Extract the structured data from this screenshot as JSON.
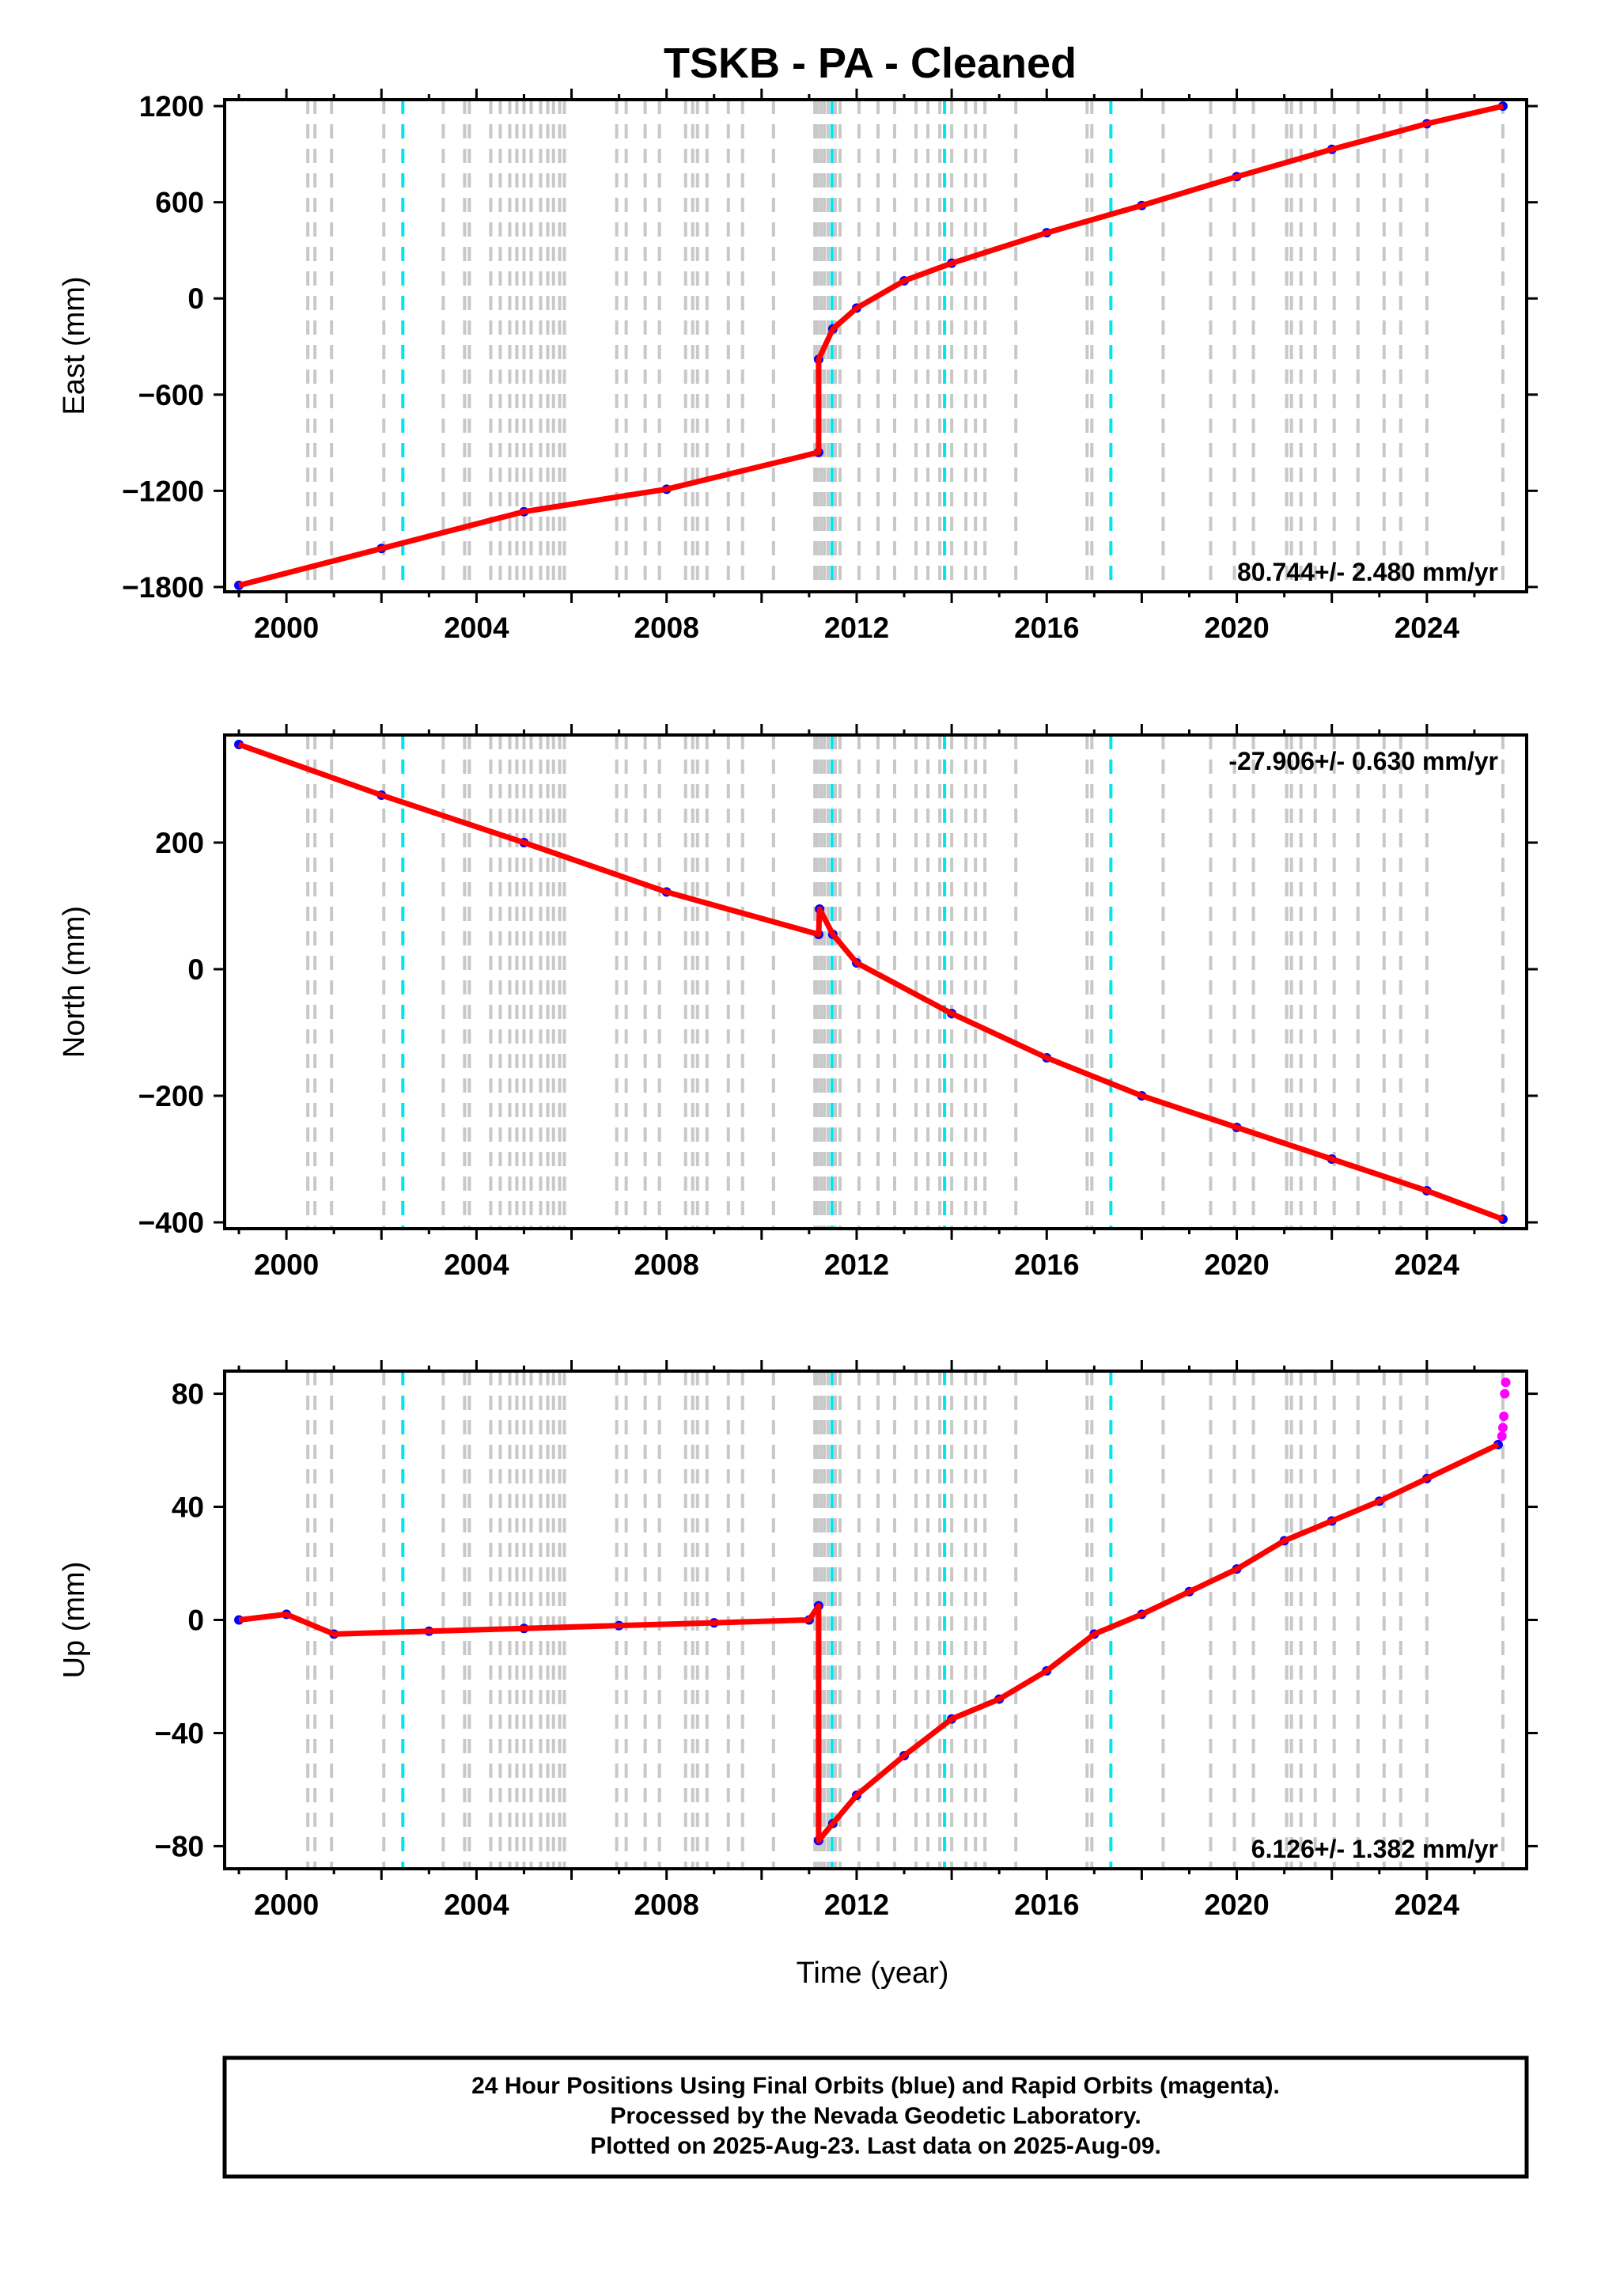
{
  "chart_data": {
    "title": "TSKB  - PA - Cleaned",
    "xlabel": "Time (year)",
    "xlim": [
      1998.7,
      2026.1
    ],
    "x_ticks": [
      "2000",
      "2004",
      "2008",
      "2012",
      "2016",
      "2020",
      "2024"
    ],
    "colors": {
      "final_orbits": "#0000ff",
      "rapid_orbits": "#ff00ff",
      "model_fit": "#ff0000",
      "equipment_change": "#c8c8c8",
      "earthquake": "#00e5ee"
    },
    "gray_event_lines": [
      2000.45,
      2000.6,
      2000.95,
      2002.05,
      2003.3,
      2003.75,
      2003.85,
      2004.3,
      2004.5,
      2004.7,
      2004.85,
      2005.0,
      2005.15,
      2005.35,
      2005.5,
      2005.62,
      2005.75,
      2005.85,
      2006.95,
      2007.15,
      2007.55,
      2007.85,
      2008.4,
      2008.55,
      2008.65,
      2008.85,
      2009.3,
      2009.6,
      2010.25,
      2011.12,
      2011.18,
      2011.25,
      2011.32,
      2011.4,
      2011.55,
      2011.65,
      2012.05,
      2012.45,
      2012.8,
      2013.25,
      2013.5,
      2013.75,
      2014.0,
      2014.3,
      2014.5,
      2014.7,
      2015.35,
      2016.85,
      2016.95,
      2018.45,
      2019.45,
      2019.95,
      2020.35,
      2021.05,
      2021.15,
      2021.35,
      2021.65,
      2022.05,
      2022.55,
      2023.1,
      2023.45,
      2024.0,
      2025.6
    ],
    "cyan_event_lines": [
      2002.45,
      2011.48,
      2013.85,
      2017.35
    ],
    "panels": [
      {
        "type": "scatter",
        "ylabel": "East (mm)",
        "ylim": [
          -1830,
          1240
        ],
        "y_ticks": [
          -1800,
          -1200,
          -600,
          0,
          600,
          1200
        ],
        "rate_label": "80.744+/- 2.480 mm/yr",
        "rate_position": "bottom-right",
        "series": [
          {
            "name": "Final Orbits",
            "role": "final",
            "x": [
              1999.0,
              2002.0,
              2005.0,
              2008.0,
              2011.2,
              2011.2,
              2011.5,
              2012.0,
              2013.0,
              2014.0,
              2016.0,
              2018.0,
              2020.0,
              2022.0,
              2024.0,
              2025.6
            ],
            "y": [
              -1790,
              -1560,
              -1330,
              -1190,
              -960,
              -380,
              -190,
              -60,
              110,
              220,
              410,
              580,
              760,
              930,
              1090,
              1200
            ]
          },
          {
            "name": "Model Fit",
            "role": "fit",
            "x": [
              1999.0,
              2002.0,
              2005.0,
              2008.0,
              2011.2,
              2011.2,
              2011.5,
              2012.0,
              2013.0,
              2014.0,
              2016.0,
              2018.0,
              2020.0,
              2022.0,
              2024.0,
              2025.6
            ],
            "y": [
              -1790,
              -1560,
              -1330,
              -1190,
              -960,
              -380,
              -190,
              -60,
              110,
              220,
              410,
              580,
              760,
              930,
              1090,
              1200
            ]
          }
        ]
      },
      {
        "type": "scatter",
        "ylabel": "North (mm)",
        "ylim": [
          -410,
          370
        ],
        "y_ticks": [
          -400,
          -200,
          0,
          200
        ],
        "rate_label": "-27.906+/- 0.630 mm/yr",
        "rate_position": "top-right",
        "series": [
          {
            "name": "Final Orbits",
            "role": "final",
            "x": [
              1999.0,
              2002.0,
              2005.0,
              2008.0,
              2011.2,
              2011.22,
              2011.5,
              2012.0,
              2014.0,
              2016.0,
              2018.0,
              2020.0,
              2022.0,
              2024.0,
              2025.6
            ],
            "y": [
              355,
              275,
              200,
              122,
              55,
              95,
              55,
              10,
              -70,
              -140,
              -200,
              -250,
              -300,
              -350,
              -395
            ]
          },
          {
            "name": "Model Fit",
            "role": "fit",
            "x": [
              1999.0,
              2002.0,
              2005.0,
              2008.0,
              2011.2,
              2011.22,
              2011.5,
              2012.0,
              2014.0,
              2016.0,
              2018.0,
              2020.0,
              2022.0,
              2024.0,
              2025.6
            ],
            "y": [
              355,
              275,
              200,
              122,
              55,
              95,
              55,
              10,
              -70,
              -140,
              -200,
              -250,
              -300,
              -350,
              -395
            ]
          }
        ]
      },
      {
        "type": "scatter",
        "ylabel": "Up (mm)",
        "ylim": [
          -88,
          88
        ],
        "y_ticks": [
          -80,
          -40,
          0,
          40,
          80
        ],
        "rate_label": "6.126+/- 1.382 mm/yr",
        "rate_position": "bottom-right",
        "series": [
          {
            "name": "Final Orbits",
            "role": "final",
            "x": [
              1999.0,
              2000.0,
              2001.0,
              2003.0,
              2005.0,
              2007.0,
              2009.0,
              2011.0,
              2011.2,
              2011.2,
              2011.5,
              2012.0,
              2013.0,
              2014.0,
              2015.0,
              2016.0,
              2017.0,
              2018.0,
              2019.0,
              2020.0,
              2021.0,
              2022.0,
              2023.0,
              2024.0,
              2025.5
            ],
            "y": [
              0,
              2,
              -5,
              -4,
              -3,
              -2,
              -1,
              0,
              5,
              -78,
              -72,
              -62,
              -48,
              -35,
              -28,
              -18,
              -5,
              2,
              10,
              18,
              28,
              35,
              42,
              50,
              62
            ]
          },
          {
            "name": "Rapid Orbits",
            "role": "rapid",
            "x": [
              2025.58,
              2025.6,
              2025.62,
              2025.64,
              2025.66
            ],
            "y": [
              65,
              68,
              72,
              80,
              84
            ]
          },
          {
            "name": "Model Fit",
            "role": "fit",
            "x": [
              1999.0,
              2000.0,
              2001.0,
              2003.0,
              2005.0,
              2007.0,
              2009.0,
              2011.0,
              2011.2,
              2011.2,
              2011.5,
              2012.0,
              2013.0,
              2014.0,
              2015.0,
              2016.0,
              2017.0,
              2018.0,
              2019.0,
              2020.0,
              2021.0,
              2022.0,
              2023.0,
              2024.0,
              2025.5
            ],
            "y": [
              0,
              2,
              -5,
              -4,
              -3,
              -2,
              -1,
              0,
              5,
              -78,
              -72,
              -62,
              -48,
              -35,
              -28,
              -18,
              -5,
              2,
              10,
              18,
              28,
              35,
              42,
              50,
              62
            ]
          }
        ]
      }
    ]
  },
  "footer": {
    "line1": "24 Hour Positions Using Final Orbits (blue) and Rapid Orbits (magenta).",
    "line2": "Processed by the Nevada Geodetic Laboratory.",
    "line3": "Plotted on 2025-Aug-23. Last data on 2025-Aug-09."
  }
}
